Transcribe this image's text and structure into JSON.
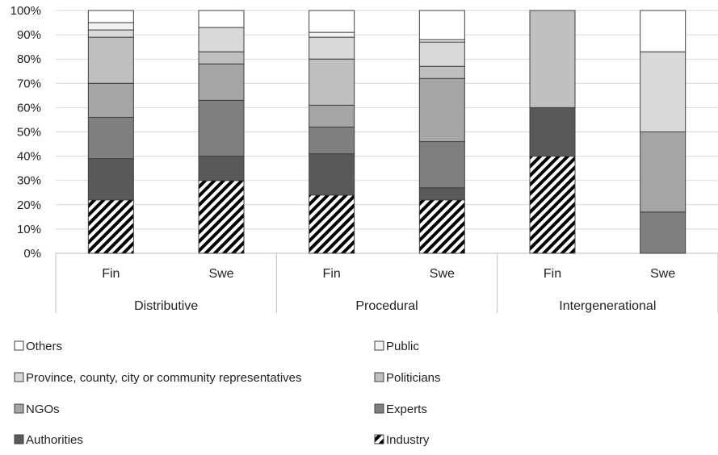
{
  "chart_data": {
    "type": "bar",
    "stacked": "percent",
    "ylim": [
      0,
      100
    ],
    "y_ticks": [
      "0%",
      "10%",
      "20%",
      "30%",
      "40%",
      "50%",
      "60%",
      "70%",
      "80%",
      "90%",
      "100%"
    ],
    "grid": true,
    "legend_position": "bottom",
    "groups": [
      {
        "label": "Distributive",
        "categories": [
          "Fin",
          "Swe"
        ]
      },
      {
        "label": "Procedural",
        "categories": [
          "Fin",
          "Swe"
        ]
      },
      {
        "label": "Intergenerational",
        "categories": [
          "Fin",
          "Swe"
        ]
      }
    ],
    "categories": [
      "Fin",
      "Swe",
      "Fin",
      "Swe",
      "Fin",
      "Swe"
    ],
    "series": [
      {
        "name": "Industry",
        "color": "#ffffff",
        "pattern": "diagonal-hatch",
        "values": [
          22,
          30,
          24,
          22,
          40,
          0
        ]
      },
      {
        "name": "Authorities",
        "color": "#595959",
        "values": [
          17,
          10,
          17,
          5,
          20,
          0
        ]
      },
      {
        "name": "Experts",
        "color": "#7f7f7f",
        "values": [
          17,
          23,
          11,
          19,
          0,
          17
        ]
      },
      {
        "name": "NGOs",
        "color": "#a5a5a5",
        "values": [
          14,
          15,
          9,
          26,
          0,
          33
        ]
      },
      {
        "name": "Politicians",
        "color": "#bfbfbf",
        "values": [
          19,
          5,
          19,
          5,
          40,
          0
        ]
      },
      {
        "name": "Province, county, city or community representatives",
        "color": "#d9d9d9",
        "values": [
          3,
          10,
          9,
          10,
          0,
          33
        ]
      },
      {
        "name": "Public",
        "color": "#f2f2f2",
        "values": [
          3,
          0,
          2,
          1,
          0,
          0
        ]
      },
      {
        "name": "Others",
        "color": "#ffffff",
        "values": [
          5,
          7,
          9,
          12,
          0,
          17
        ]
      }
    ],
    "legend": [
      {
        "label": "Others",
        "series": "Others"
      },
      {
        "label": "Public",
        "series": "Public"
      },
      {
        "label": "Province, county, city or community representatives",
        "series": "Province, county, city or community representatives"
      },
      {
        "label": "Politicians",
        "series": "Politicians"
      },
      {
        "label": "NGOs",
        "series": "NGOs"
      },
      {
        "label": "Experts",
        "series": "Experts"
      },
      {
        "label": "Authorities",
        "series": "Authorities"
      },
      {
        "label": "Industry",
        "series": "Industry"
      }
    ]
  }
}
